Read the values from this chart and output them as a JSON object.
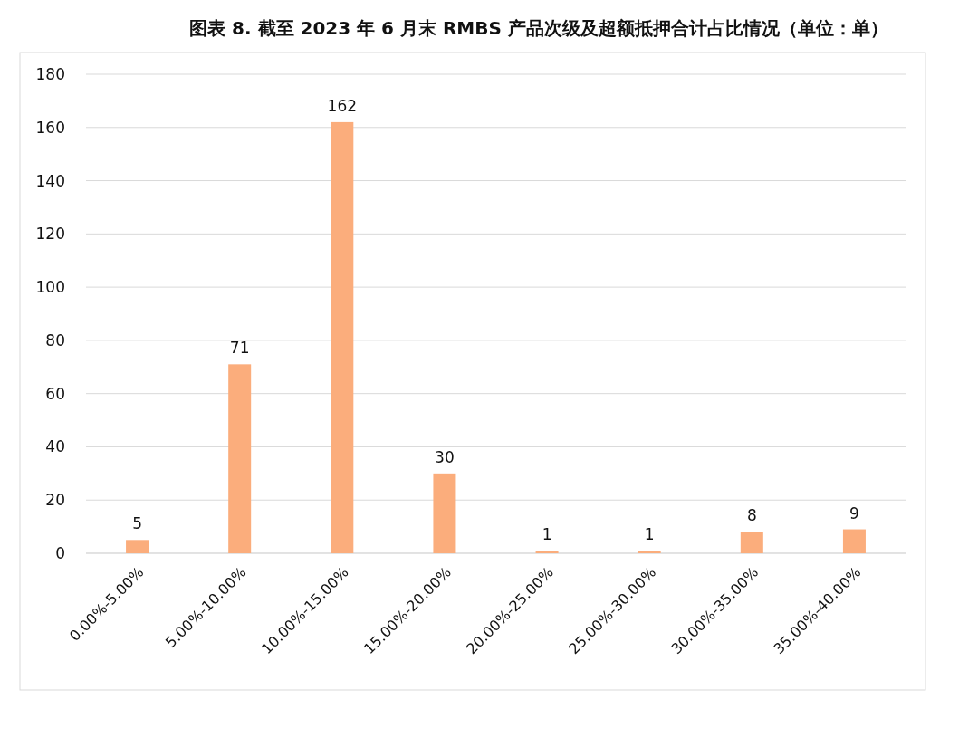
{
  "chart_data": {
    "type": "bar",
    "title": "图表 8.   截至 2023 年 6 月末 RMBS 产品次级及超额抵押合计占比情况（单位：单）",
    "categories": [
      "0.00%-5.00%",
      "5.00%-10.00%",
      "10.00%-15.00%",
      "15.00%-20.00%",
      "20.00%-25.00%",
      "25.00%-30.00%",
      "30.00%-35.00%",
      "35.00%-40.00%"
    ],
    "values": [
      5,
      71,
      162,
      30,
      1,
      1,
      8,
      9
    ],
    "color": "#fbad7c",
    "ylim": [
      0,
      180
    ],
    "yticks": [
      0,
      20,
      40,
      60,
      80,
      100,
      120,
      140,
      160,
      180
    ],
    "grid": "y",
    "data_labels": true
  }
}
